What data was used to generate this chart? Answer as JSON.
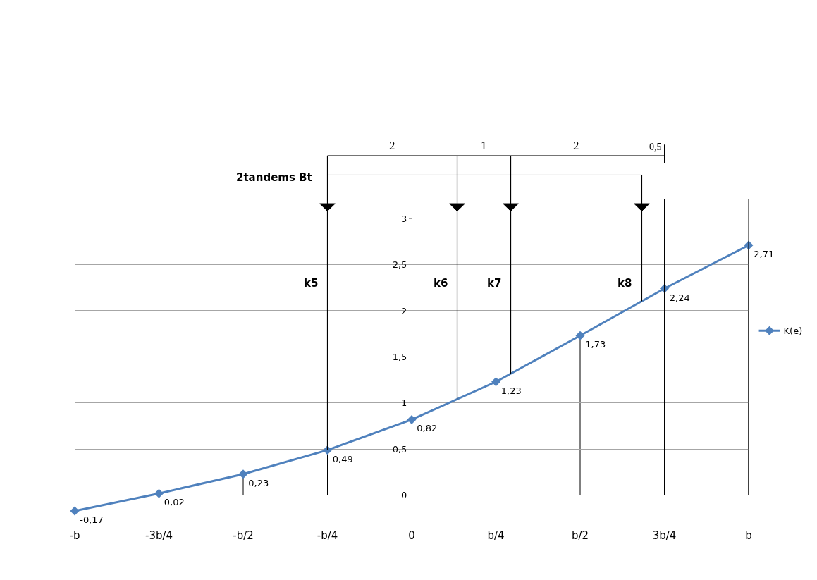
{
  "chart_data": {
    "type": "line",
    "categories": [
      "-b",
      "-3b/4",
      "-b/2",
      "-b/4",
      "0",
      "b/4",
      "b/2",
      "3b/4",
      "b"
    ],
    "ylim": [
      -0.2,
      3
    ],
    "yticks": [
      0,
      {
        "value": 0.5,
        "label": "0,5"
      },
      1,
      {
        "value": 1.5,
        "label": "1,5"
      },
      2,
      {
        "value": 2.5,
        "label": "2,5"
      },
      3
    ],
    "series": [
      {
        "name": "K(e)",
        "color": "#4f81bd",
        "values": [
          -0.17,
          0.02,
          0.23,
          0.49,
          0.82,
          1.23,
          1.73,
          2.24,
          2.71
        ],
        "value_labels": [
          "-0,17",
          "0,02",
          "0,23",
          "0,49",
          "0,82",
          "1,23",
          "1,73",
          "2,24",
          "2,71"
        ]
      }
    ],
    "marker": "diamond",
    "line_style": "solid",
    "grid": true,
    "legend": "right",
    "annotations": [
      "2tandems Bt",
      "2",
      "1",
      "2",
      "0,5",
      "k5",
      "k6",
      "k7",
      "k8"
    ]
  }
}
